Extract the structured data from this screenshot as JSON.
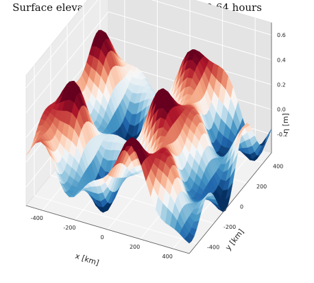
{
  "chart_data": {
    "type": "surface3d",
    "title": "Surface elevation η(x, y, t) after t = 29.64 hours",
    "xlabel": "x [km]",
    "ylabel": "y [km]",
    "zlabel": "η [m]",
    "x_ticks": [
      -400,
      -200,
      0,
      200,
      400
    ],
    "y_ticks": [
      -400,
      -200,
      0,
      200,
      400
    ],
    "z_ticks": [
      -0.2,
      0.0,
      0.2,
      0.4,
      0.6
    ],
    "xlim": [
      -500,
      500
    ],
    "ylim": [
      -500,
      500
    ],
    "zlim": [
      -0.35,
      0.7
    ],
    "colormap": "RdBu_r",
    "color_range": [
      -0.3,
      0.3
    ],
    "grid": true
  }
}
